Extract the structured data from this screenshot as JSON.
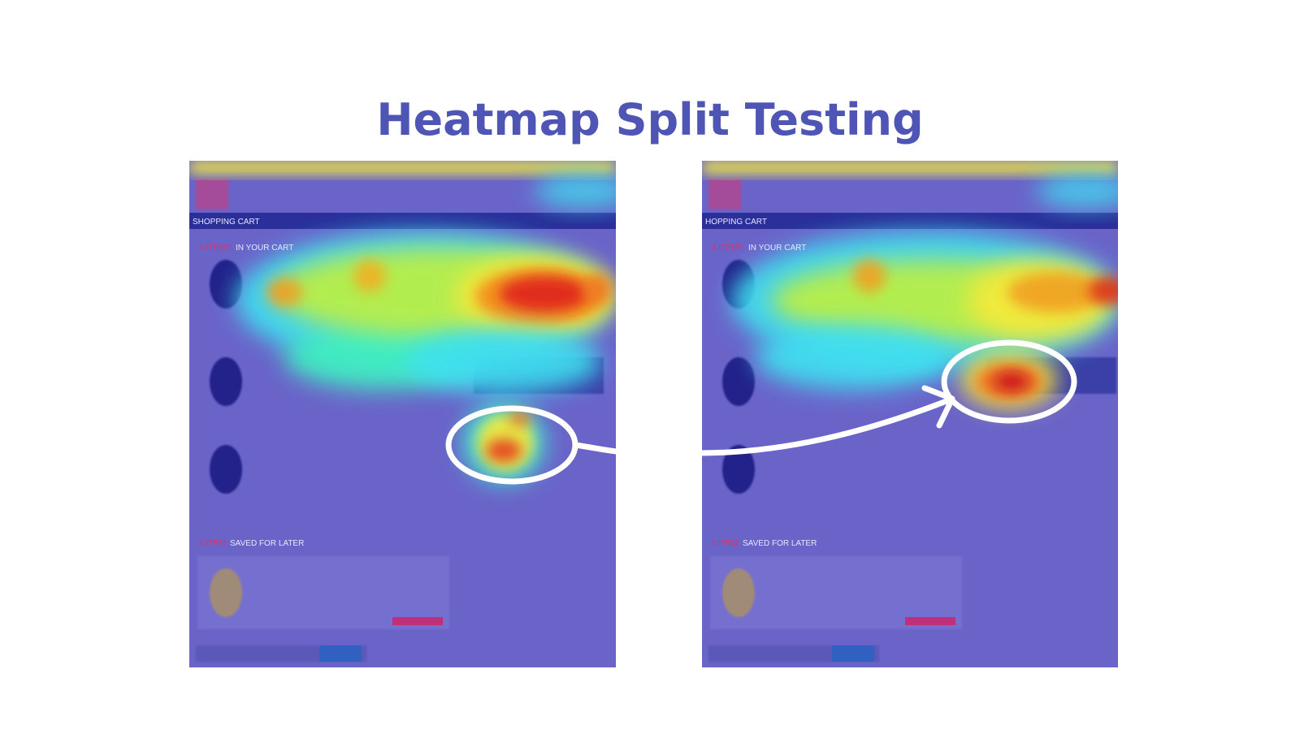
{
  "title": "Heatmap Split Testing",
  "panels": [
    {
      "header": "SHOPPING CART",
      "items_count": "4 ITEMS",
      "items_text": "IN YOUR CART",
      "saved_count": "1 ITEM",
      "saved_text": "SAVED FOR LATER"
    },
    {
      "header": "HOPPING CART",
      "items_count": "4 ITEMS",
      "items_text": "IN YOUR CART",
      "saved_count": "1 ITEM",
      "saved_text": "SAVED FOR LATER"
    }
  ]
}
